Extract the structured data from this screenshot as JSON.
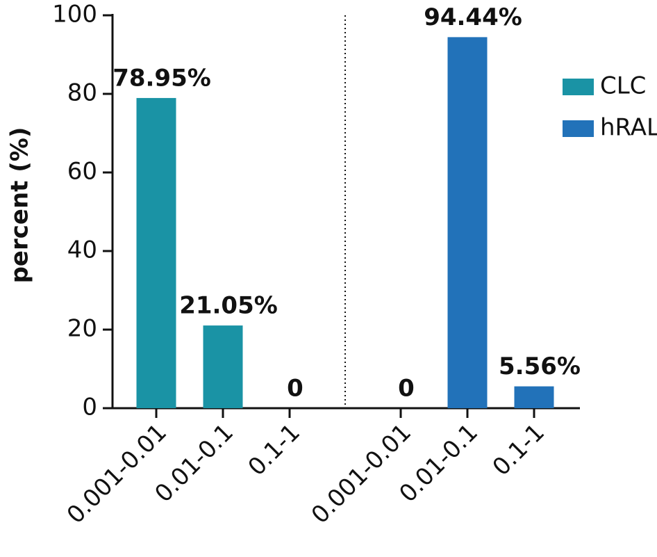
{
  "chart_data": {
    "type": "bar",
    "categories": [
      "0.001-0.01",
      "0.01-0.1",
      "0.1-1",
      "0.001-0.01",
      "0.01-0.1",
      "0.1-1"
    ],
    "series": [
      {
        "name": "CLC",
        "color": "#1a93a5",
        "values": [
          78.95,
          21.05,
          0,
          null,
          null,
          null
        ],
        "value_labels": [
          "78.95%",
          "21.05%",
          "0",
          null,
          null,
          null
        ]
      },
      {
        "name": "hRAL",
        "color": "#2272b9",
        "values": [
          null,
          null,
          null,
          0,
          94.44,
          5.56
        ],
        "value_labels": [
          null,
          null,
          null,
          "0",
          "94.44%",
          "5.56%"
        ]
      }
    ],
    "y_label": "percent (%)",
    "ylim": [
      0,
      100
    ],
    "yticks": [
      0,
      20,
      40,
      60,
      80,
      100
    ],
    "grid": false,
    "legend": "right"
  }
}
